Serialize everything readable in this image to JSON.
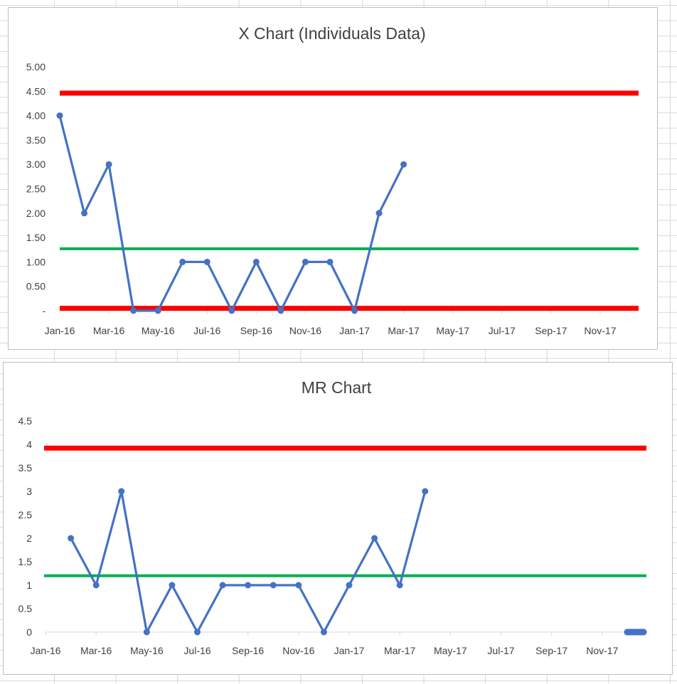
{
  "chart_data": [
    {
      "type": "line",
      "title": "X Chart (Individuals Data)",
      "xlabel": "",
      "ylabel": "",
      "x_tick_labels": [
        "Jan-16",
        "Mar-16",
        "May-16",
        "Jul-16",
        "Sep-16",
        "Nov-16",
        "Jan-17",
        "Mar-17",
        "May-17",
        "Jul-17",
        "Sep-17",
        "Nov-17"
      ],
      "y_tick_labels": [
        "-",
        "0.50",
        "1.00",
        "1.50",
        "2.00",
        "2.50",
        "3.00",
        "3.50",
        "4.00",
        "4.50",
        "5.00"
      ],
      "ylim": [
        0,
        5
      ],
      "x_domain": [
        0,
        24
      ],
      "categories": [
        "Jan-16",
        "Feb-16",
        "Mar-16",
        "Apr-16",
        "May-16",
        "Jun-16",
        "Jul-16",
        "Aug-16",
        "Sep-16",
        "Oct-16",
        "Nov-16",
        "Dec-16",
        "Jan-17",
        "Feb-17",
        "Mar-17"
      ],
      "series": [
        {
          "values": [
            4,
            2,
            3,
            0,
            0,
            1,
            1,
            0,
            1,
            0,
            1,
            1,
            0,
            2,
            3
          ],
          "color": "#4472c4"
        }
      ],
      "reference_lines": [
        {
          "value": 4.46,
          "color": "#ff0000"
        },
        {
          "value": 1.27,
          "color": "#00b050"
        },
        {
          "value": 0.05,
          "color": "#ff0000"
        }
      ],
      "grid": false,
      "legend": "none"
    },
    {
      "type": "line",
      "title": "MR Chart",
      "xlabel": "",
      "ylabel": "",
      "x_tick_labels": [
        "Jan-16",
        "Mar-16",
        "May-16",
        "Jul-16",
        "Sep-16",
        "Nov-16",
        "Jan-17",
        "Mar-17",
        "May-17",
        "Jul-17",
        "Sep-17",
        "Nov-17"
      ],
      "y_tick_labels": [
        "0",
        "0.5",
        "1",
        "1.5",
        "2",
        "2.5",
        "3",
        "3.5",
        "4",
        "4.5"
      ],
      "ylim": [
        0,
        4.5
      ],
      "x_domain": [
        0,
        24
      ],
      "categories": [
        "Feb-16",
        "Mar-16",
        "Apr-16",
        "May-16",
        "Jun-16",
        "Jul-16",
        "Aug-16",
        "Sep-16",
        "Oct-16",
        "Nov-16",
        "Dec-16",
        "Jan-17",
        "Feb-17",
        "Mar-17",
        "Apr-17"
      ],
      "series": [
        {
          "values": [
            2,
            1,
            3,
            0,
            1,
            0,
            1,
            1,
            1,
            1,
            0,
            1,
            2,
            1,
            3
          ],
          "color": "#4472c4"
        }
      ],
      "trailing_zero_points": [
        "Dec-17",
        "Dec-17",
        "Dec-17",
        "Dec-17",
        "Dec-17"
      ],
      "reference_lines": [
        {
          "value": 3.92,
          "color": "#ff0000"
        },
        {
          "value": 1.2,
          "color": "#00b050"
        }
      ],
      "grid": false,
      "legend": "none"
    }
  ]
}
